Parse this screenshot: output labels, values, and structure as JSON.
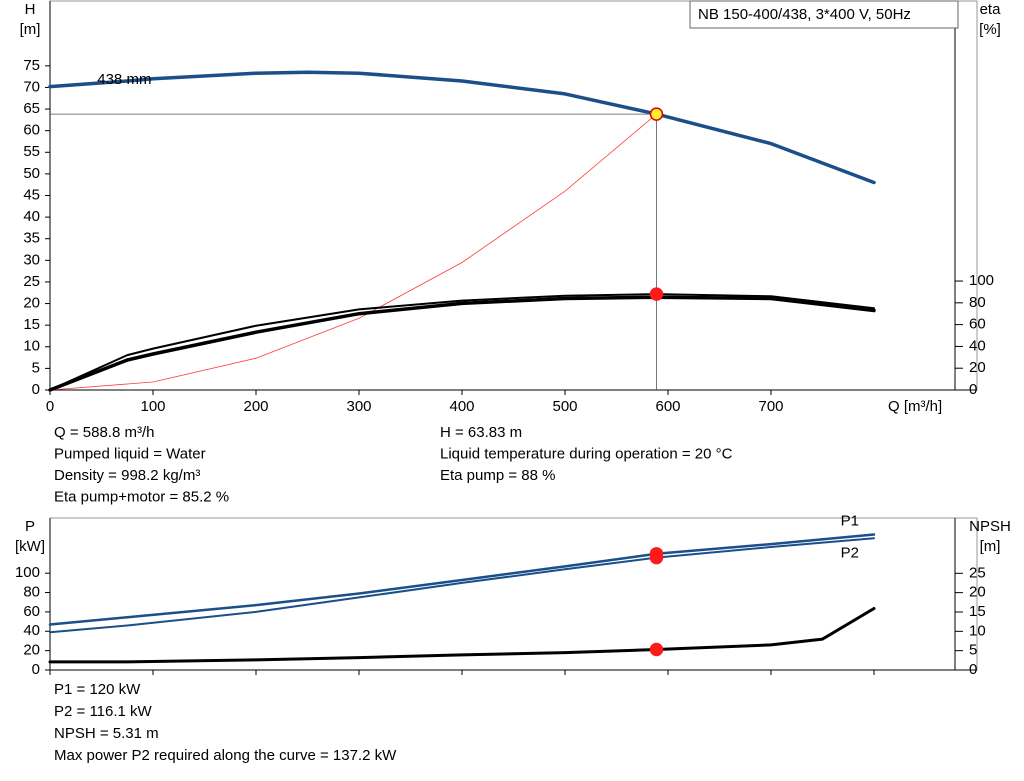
{
  "chart_data": [
    {
      "type": "line",
      "title": "NB 150-400/438, 3*400 V, 50Hz",
      "y_label": "H",
      "y_unit": "[m]",
      "y2_label": "eta",
      "y2_unit": "[%]",
      "x_label": "Q [m³/h]",
      "xlim": [
        0,
        900
      ],
      "xticks": [
        0,
        100,
        200,
        300,
        400,
        500,
        600,
        700
      ],
      "ylim": [
        0,
        90
      ],
      "yticks": [
        0,
        5,
        10,
        15,
        20,
        25,
        30,
        35,
        40,
        45,
        50,
        55,
        60,
        65,
        70,
        75
      ],
      "y2lim": [
        0,
        357
      ],
      "y2ticks": [
        0,
        20,
        40,
        60,
        80,
        100
      ],
      "series": [
        {
          "name": "438 mm",
          "color": "#1a4f8a",
          "width": 3.5,
          "axis": "y",
          "x": [
            0,
            75,
            100,
            200,
            250,
            300,
            400,
            500,
            588.8,
            700,
            800
          ],
          "values": [
            70.2,
            71.5,
            72,
            73.3,
            73.5,
            73.3,
            71.5,
            68.5,
            63.83,
            57,
            48
          ]
        },
        {
          "color": "#ff3b3b",
          "width": 0.8,
          "axis": "y",
          "x": [
            0,
            100,
            200,
            300,
            400,
            500,
            588.8
          ],
          "values": [
            0,
            1.84,
            7.36,
            16.6,
            29.5,
            46,
            63.83
          ]
        },
        {
          "color": "#000000",
          "width": 2,
          "axis": "y2",
          "x": [
            0,
            75,
            100,
            200,
            300,
            400,
            500,
            588.8,
            700,
            800
          ],
          "values": [
            0,
            32,
            38,
            59,
            74,
            82,
            86.5,
            88,
            86,
            75
          ]
        },
        {
          "color": "#000000",
          "width": 3.5,
          "axis": "y2",
          "x": [
            0,
            75,
            100,
            200,
            300,
            400,
            500,
            588.8,
            700,
            800
          ],
          "values": [
            0,
            27.5,
            33,
            53,
            70,
            79.5,
            84,
            85.2,
            84,
            73
          ]
        }
      ],
      "markers": [
        {
          "x": 588.8,
          "y": 63.83,
          "axis": "y",
          "color": "#ffee33"
        },
        {
          "x": 588.8,
          "y": 88,
          "axis": "y2",
          "color": "#ff1a1a"
        }
      ]
    },
    {
      "type": "line",
      "y_label": "P",
      "y_unit": "[kW]",
      "y2_label": "NPSH",
      "y2_unit": "[m]",
      "xlim": [
        0,
        900
      ],
      "xticks": [
        0,
        100,
        200,
        300,
        400,
        500,
        600,
        700,
        800
      ],
      "ylim": [
        0,
        157
      ],
      "yticks": [
        0,
        20,
        40,
        60,
        80,
        100
      ],
      "y2lim": [
        0,
        39.3
      ],
      "y2ticks": [
        0,
        5,
        10,
        15,
        20,
        25
      ],
      "series": [
        {
          "name": "P1",
          "color": "#1a4f8a",
          "width": 2.5,
          "axis": "y",
          "x": [
            0,
            75,
            200,
            300,
            400,
            500,
            588.8,
            700,
            800
          ],
          "values": [
            47,
            54.5,
            67,
            79,
            93,
            107,
            120,
            130,
            140
          ]
        },
        {
          "name": "P2",
          "color": "#1a4f8a",
          "width": 2,
          "axis": "y",
          "x": [
            0,
            75,
            200,
            300,
            400,
            500,
            588.8,
            700,
            800
          ],
          "values": [
            39,
            46,
            60,
            75,
            90,
            104,
            116.1,
            127,
            136
          ]
        },
        {
          "color": "#000000",
          "width": 3,
          "axis": "y2",
          "x": [
            0,
            75,
            200,
            300,
            400,
            500,
            588.8,
            700,
            750,
            800
          ],
          "values": [
            2.1,
            2.1,
            2.6,
            3.2,
            3.9,
            4.5,
            5.31,
            6.5,
            8,
            15.9
          ]
        }
      ],
      "markers": [
        {
          "x": 588.8,
          "y": 120,
          "axis": "y",
          "color": "#ff1a1a"
        },
        {
          "x": 588.8,
          "y": 116.1,
          "axis": "y",
          "color": "#ff1a1a"
        },
        {
          "x": 588.8,
          "y": 5.31,
          "axis": "y2",
          "color": "#ff1a1a"
        }
      ]
    }
  ],
  "info_left": [
    "Q = 588.8 m³/h",
    "Pumped liquid = Water",
    "Density = 998.2 kg/m³",
    "Eta pump+motor = 85.2 %"
  ],
  "info_right": [
    "H = 63.83 m",
    "Liquid temperature during operation = 20 °C",
    "Eta pump = 88 %"
  ],
  "power_info": [
    "P1 = 120 kW",
    "P2 = 116.1 kW",
    "NPSH = 5.31 m",
    "Max power P2 required along the curve = 137.2 kW"
  ]
}
